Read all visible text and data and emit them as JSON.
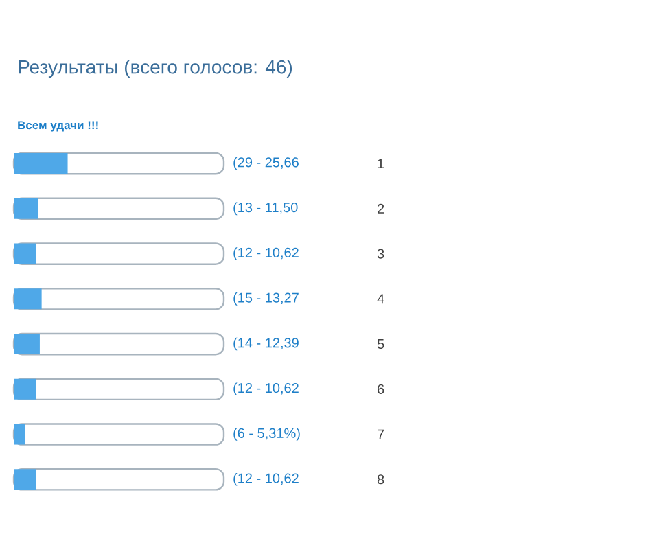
{
  "chart_data": {
    "type": "bar",
    "orientation": "horizontal",
    "title": "Результаты (всего голосов: 46)",
    "subtitle": "Всем удачи !!!",
    "categories": [
      "1",
      "2",
      "3",
      "4",
      "5",
      "6",
      "7",
      "8"
    ],
    "values": [
      29,
      13,
      12,
      15,
      14,
      12,
      6,
      12
    ],
    "value_labels": [
      "(29 - 25,66",
      "(13 - 11,50",
      "(12 - 10,62",
      "(15 - 13,27",
      "(14 - 12,39",
      "(12 - 10,62",
      "(6 - 5,31%)",
      "(12 - 10,62"
    ],
    "color": "#4fa8e8",
    "tick_labels": "y"
  }
}
